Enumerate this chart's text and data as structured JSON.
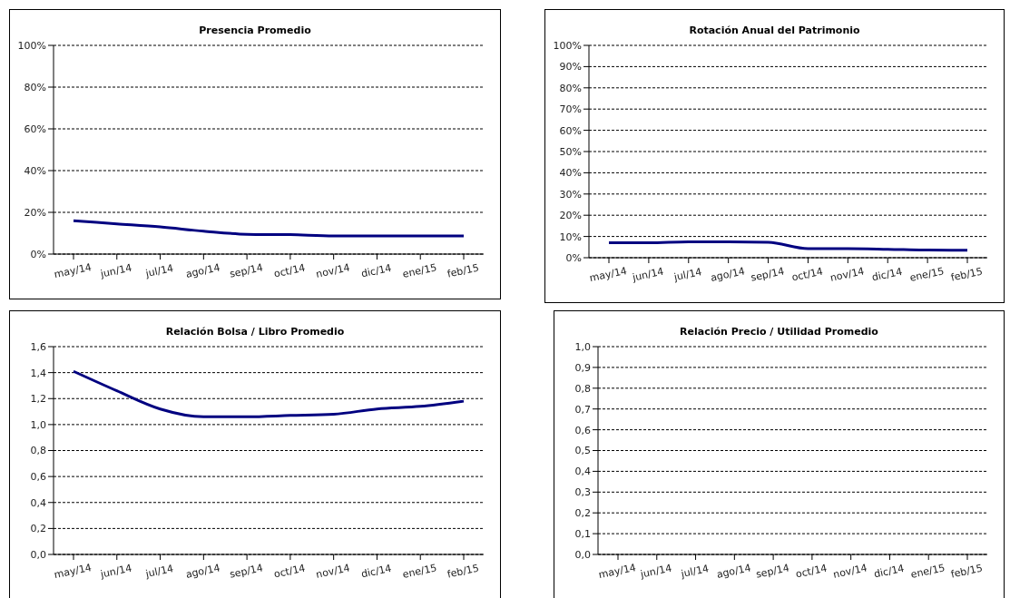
{
  "chart_data": [
    {
      "type": "line",
      "title": "Presencia Promedio",
      "categories": [
        "may/14",
        "jun/14",
        "jul/14",
        "ago/14",
        "sep/14",
        "oct/14",
        "nov/14",
        "dic/14",
        "ene/15",
        "feb/15"
      ],
      "series": [
        {
          "color": "#000080",
          "values": [
            16,
            14.5,
            13,
            11,
            9.5,
            9.3,
            8.7,
            8.7,
            8.7,
            8.7
          ]
        }
      ],
      "ylim": [
        0,
        100
      ],
      "yticks": [
        {
          "value": 0,
          "label": "0%"
        },
        {
          "value": 20,
          "label": "20%"
        },
        {
          "value": 40,
          "label": "40%"
        },
        {
          "value": 60,
          "label": "60%"
        },
        {
          "value": 80,
          "label": "80%"
        },
        {
          "value": 100,
          "label": "100%"
        }
      ],
      "grid": "y",
      "legend": false,
      "marker": "none",
      "line_style": "solid"
    },
    {
      "type": "line",
      "title": "Rotación Anual del Patrimonio",
      "categories": [
        "may/14",
        "jun/14",
        "jul/14",
        "ago/14",
        "sep/14",
        "oct/14",
        "nov/14",
        "dic/14",
        "ene/15",
        "feb/15"
      ],
      "series": [
        {
          "color": "#000080",
          "values": [
            7,
            7,
            7.5,
            7.5,
            7.3,
            4.3,
            4.3,
            4,
            3.6,
            3.5
          ]
        }
      ],
      "ylim": [
        0,
        100
      ],
      "yticks": [
        {
          "value": 0,
          "label": "0%"
        },
        {
          "value": 10,
          "label": "10%"
        },
        {
          "value": 20,
          "label": "20%"
        },
        {
          "value": 30,
          "label": "30%"
        },
        {
          "value": 40,
          "label": "40%"
        },
        {
          "value": 50,
          "label": "50%"
        },
        {
          "value": 60,
          "label": "60%"
        },
        {
          "value": 70,
          "label": "70%"
        },
        {
          "value": 80,
          "label": "80%"
        },
        {
          "value": 90,
          "label": "90%"
        },
        {
          "value": 100,
          "label": "100%"
        }
      ],
      "grid": "y",
      "legend": false,
      "marker": "none",
      "line_style": "solid"
    },
    {
      "type": "line",
      "title": "Relación Bolsa / Libro Promedio",
      "categories": [
        "may/14",
        "jun/14",
        "jul/14",
        "ago/14",
        "sep/14",
        "oct/14",
        "nov/14",
        "dic/14",
        "ene/15",
        "feb/15"
      ],
      "series": [
        {
          "color": "#000080",
          "values": [
            1.41,
            1.26,
            1.12,
            1.06,
            1.06,
            1.07,
            1.08,
            1.12,
            1.14,
            1.18
          ]
        }
      ],
      "ylim": [
        0,
        1.6
      ],
      "yticks": [
        {
          "value": 0,
          "label": "0,0"
        },
        {
          "value": 0.2,
          "label": "0,2"
        },
        {
          "value": 0.4,
          "label": "0,4"
        },
        {
          "value": 0.6,
          "label": "0,6"
        },
        {
          "value": 0.8,
          "label": "0,8"
        },
        {
          "value": 1,
          "label": "1,0"
        },
        {
          "value": 1.2,
          "label": "1,2"
        },
        {
          "value": 1.4,
          "label": "1,4"
        },
        {
          "value": 1.6,
          "label": "1,6"
        }
      ],
      "grid": "y",
      "legend": false,
      "marker": "none",
      "line_style": "solid"
    },
    {
      "type": "line",
      "title": "Relación Precio / Utilidad Promedio",
      "categories": [
        "may/14",
        "jun/14",
        "jul/14",
        "ago/14",
        "sep/14",
        "oct/14",
        "nov/14",
        "dic/14",
        "ene/15",
        "feb/15"
      ],
      "series": [
        {
          "color": "#000080",
          "values": [
            null,
            null,
            null,
            null,
            null,
            null,
            null,
            null,
            null,
            null
          ]
        }
      ],
      "ylim": [
        0,
        1
      ],
      "yticks": [
        {
          "value": 0,
          "label": "0,0"
        },
        {
          "value": 0.1,
          "label": "0,1"
        },
        {
          "value": 0.2,
          "label": "0,2"
        },
        {
          "value": 0.3,
          "label": "0,3"
        },
        {
          "value": 0.4,
          "label": "0,4"
        },
        {
          "value": 0.5,
          "label": "0,5"
        },
        {
          "value": 0.6,
          "label": "0,6"
        },
        {
          "value": 0.7,
          "label": "0,7"
        },
        {
          "value": 0.8,
          "label": "0,8"
        },
        {
          "value": 0.9,
          "label": "0,9"
        },
        {
          "value": 1,
          "label": "1,0"
        }
      ],
      "grid": "y",
      "legend": false,
      "marker": "none",
      "line_style": "solid"
    }
  ]
}
